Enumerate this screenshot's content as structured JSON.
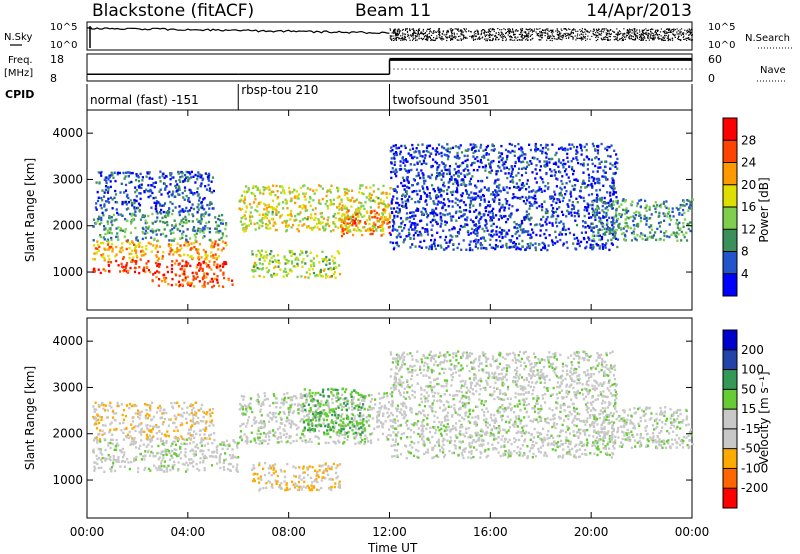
{
  "title": {
    "station": "Blackstone (fitACF)",
    "beam": "Beam 11",
    "date": "14/Apr/2013"
  },
  "header_rows": {
    "nsky_label": "N.Sky",
    "nsky_ticks": [
      "10^5",
      "10^0"
    ],
    "nsearch_label": "N.Search",
    "freq_label_line1": "Freq.",
    "freq_label_line2": "[MHz]",
    "freq_ticks": [
      "18",
      "8"
    ],
    "nave_label": "Nave",
    "nave_ticks": [
      "60",
      "0"
    ],
    "cpid_label": "CPID",
    "cpid_segments": [
      {
        "start": 0,
        "end": 6,
        "label": "normal (fast) -151"
      },
      {
        "start": 6,
        "end": 12,
        "label": "rbsp-tou 210"
      },
      {
        "start": 12,
        "end": 24,
        "label": "twofsound 3501"
      }
    ],
    "freq_series": [
      {
        "x0": 0,
        "x1": 6,
        "mhz": 10.5
      },
      {
        "x0": 6,
        "x1": 12,
        "mhz": 10.5
      },
      {
        "x0": 12,
        "x1": 24,
        "mhz": 16
      }
    ]
  },
  "axes": {
    "x_ticks": [
      "00:00",
      "04:00",
      "08:00",
      "12:00",
      "16:00",
      "20:00",
      "00:00"
    ],
    "x_label": "Time UT",
    "y_label": "Slant Range [km]",
    "y_ticks": [
      "1000",
      "2000",
      "3000",
      "4000"
    ]
  },
  "colors": {
    "power_scale": [
      "#0000ff",
      "#2255cc",
      "#3a8f5a",
      "#7fcf4f",
      "#dede00",
      "#ff9900",
      "#ff4400",
      "#ff0000"
    ],
    "velocity_scale": [
      "#ff0000",
      "#ff6600",
      "#ffaa00",
      "#c8c8c8",
      "#c8c8c8",
      "#66cc33",
      "#339955",
      "#2244aa",
      "#0000cc"
    ]
  },
  "colorbars": {
    "power": {
      "label": "Power [dB]",
      "ticks": [
        "4",
        "8",
        "12",
        "16",
        "20",
        "24",
        "28"
      ]
    },
    "velocity": {
      "label": "Velocity [m s⁻¹]",
      "ticks": [
        "-200",
        "-100",
        "-50",
        "-15",
        "15",
        "50",
        "100",
        "200"
      ]
    }
  },
  "chart_data": [
    {
      "type": "heatmap",
      "panel": "power",
      "xlabel": "Time UT",
      "ylabel": "Slant Range [km]",
      "xlim": [
        0,
        24
      ],
      "ylim": [
        180,
        4500
      ],
      "colorbar_label": "Power [dB]",
      "colorbar_range": [
        0,
        30
      ],
      "regions": [
        {
          "t0": 0.2,
          "t1": 5.5,
          "r0": 1000,
          "r1": 1300,
          "power": 26
        },
        {
          "t0": 0.2,
          "t1": 5.5,
          "r0": 1300,
          "r1": 1700,
          "power": 20
        },
        {
          "t0": 0.2,
          "t1": 5.5,
          "r0": 1700,
          "r1": 2300,
          "power": 10
        },
        {
          "t0": 0.3,
          "t1": 5.0,
          "r0": 2300,
          "r1": 3200,
          "power": 5
        },
        {
          "t0": 2.5,
          "t1": 5.8,
          "r0": 700,
          "r1": 1000,
          "power": 24
        },
        {
          "t0": 6.0,
          "t1": 12.0,
          "r0": 1900,
          "r1": 2900,
          "power": 16
        },
        {
          "t0": 6.5,
          "t1": 10.0,
          "r0": 900,
          "r1": 1500,
          "power": 14
        },
        {
          "t0": 10.0,
          "t1": 12.0,
          "r0": 1800,
          "r1": 2400,
          "power": 22
        },
        {
          "t0": 12.0,
          "t1": 21.0,
          "r0": 1500,
          "r1": 3800,
          "power": 4
        },
        {
          "t0": 20.0,
          "t1": 24.0,
          "r0": 1700,
          "r1": 2600,
          "power": 10
        }
      ]
    },
    {
      "type": "heatmap",
      "panel": "velocity",
      "xlabel": "Time UT",
      "ylabel": "Slant Range [km]",
      "xlim": [
        0,
        24
      ],
      "ylim": [
        180,
        4500
      ],
      "colorbar_label": "Velocity [m s⁻¹]",
      "colorbar_range": [
        -200,
        200
      ],
      "regions": [
        {
          "t0": 0.2,
          "t1": 6.0,
          "r0": 1200,
          "r1": 1900,
          "velocity": 0
        },
        {
          "t0": 0.2,
          "t1": 5.0,
          "r0": 1900,
          "r1": 2700,
          "velocity": -60
        },
        {
          "t0": 6.5,
          "t1": 10.0,
          "r0": 800,
          "r1": 1400,
          "velocity": -60
        },
        {
          "t0": 6.0,
          "t1": 12.0,
          "r0": 1800,
          "r1": 2900,
          "velocity": 0
        },
        {
          "t0": 8.5,
          "t1": 11.0,
          "r0": 2000,
          "r1": 3000,
          "velocity": 60
        },
        {
          "t0": 12.0,
          "t1": 21.0,
          "r0": 1500,
          "r1": 3800,
          "velocity": 0
        },
        {
          "t0": 20.0,
          "t1": 24.0,
          "r0": 1700,
          "r1": 2600,
          "velocity": 0
        }
      ]
    }
  ]
}
